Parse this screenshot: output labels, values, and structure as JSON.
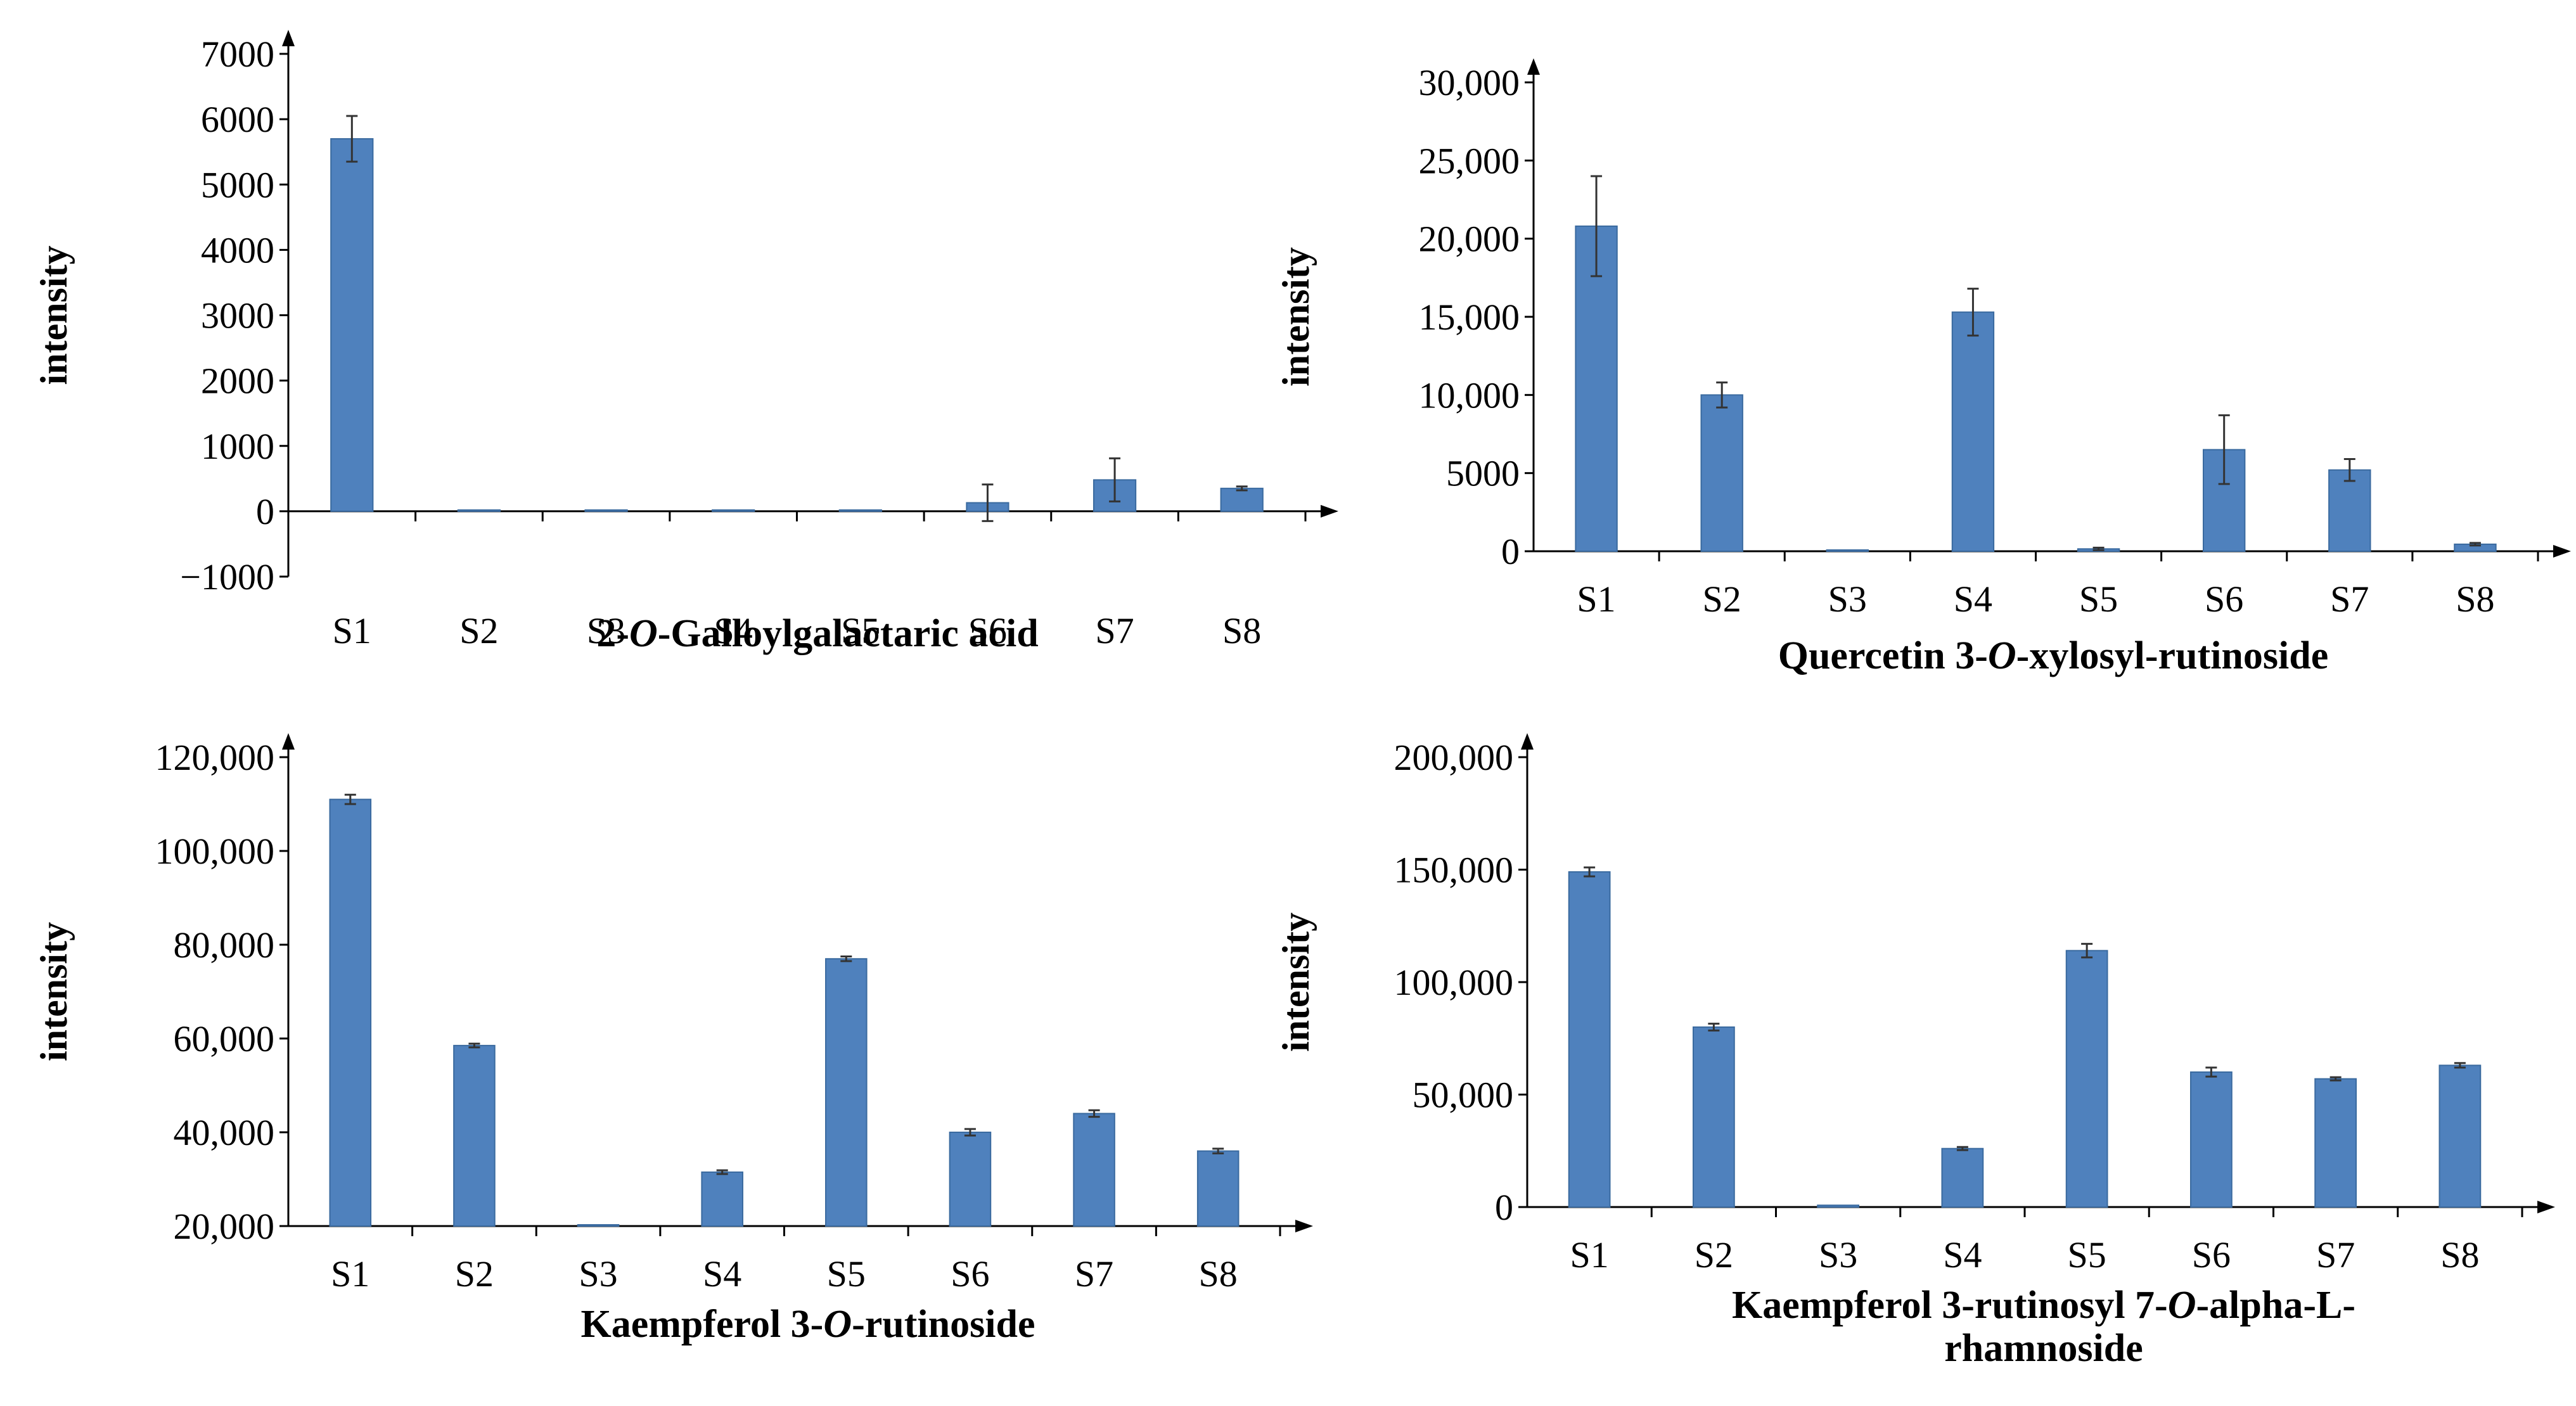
{
  "figure": {
    "background": "#ffffff",
    "bar_color": "#4f81bd",
    "bar_edge": "#3a6a9f",
    "axis_color": "#000000"
  },
  "chart_data": [
    {
      "type": "bar",
      "title_parts": [
        {
          "text": "2-",
          "italic": false
        },
        {
          "text": "O",
          "italic": true
        },
        {
          "text": "-Galloylgalactaric acid",
          "italic": false
        }
      ],
      "ylabel": "intensity",
      "categories": [
        "S1",
        "S2",
        "S3",
        "S4",
        "S5",
        "S6",
        "S7",
        "S8"
      ],
      "values": [
        5700,
        0,
        0,
        0,
        0,
        130,
        480,
        350
      ],
      "errors": [
        350,
        0,
        0,
        0,
        0,
        280,
        330,
        30
      ],
      "ylim": [
        -1000,
        7000
      ],
      "yticks": [
        -1000,
        0,
        1000,
        2000,
        3000,
        4000,
        5000,
        6000,
        7000
      ],
      "ytick_labels": [
        "−1000",
        "0",
        "1000",
        "2000",
        "3000",
        "4000",
        "5000",
        "6000",
        "7000"
      ],
      "grid": false
    },
    {
      "type": "bar",
      "title_parts": [
        {
          "text": "Quercetin 3-",
          "italic": false
        },
        {
          "text": "O",
          "italic": true
        },
        {
          "text": "-xylosyl-rutinoside",
          "italic": false
        }
      ],
      "ylabel": "intensity",
      "categories": [
        "S1",
        "S2",
        "S3",
        "S4",
        "S5",
        "S6",
        "S7",
        "S8"
      ],
      "values": [
        20800,
        10000,
        0,
        15300,
        150,
        6500,
        5200,
        450
      ],
      "errors": [
        3200,
        800,
        0,
        1500,
        80,
        2200,
        700,
        80
      ],
      "ylim": [
        0,
        30000
      ],
      "yticks": [
        0,
        5000,
        10000,
        15000,
        20000,
        25000,
        30000
      ],
      "ytick_labels": [
        "0",
        "5000",
        "10,000",
        "15,000",
        "20,000",
        "25,000",
        "30,000"
      ],
      "grid": false
    },
    {
      "type": "bar",
      "title_parts": [
        {
          "text": "Kaempferol 3-",
          "italic": false
        },
        {
          "text": "O",
          "italic": true
        },
        {
          "text": "-rutinoside",
          "italic": false
        }
      ],
      "ylabel": "intensity",
      "categories": [
        "S1",
        "S2",
        "S3",
        "S4",
        "S5",
        "S6",
        "S7",
        "S8"
      ],
      "values": [
        111000,
        58500,
        20200,
        31500,
        77000,
        40000,
        44000,
        36000
      ],
      "errors": [
        1000,
        400,
        0,
        400,
        500,
        700,
        700,
        500
      ],
      "ylim": [
        20000,
        120000
      ],
      "yticks": [
        20000,
        40000,
        60000,
        80000,
        100000,
        120000
      ],
      "ytick_labels": [
        "20,000",
        "40,000",
        "60,000",
        "80,000",
        "100,000",
        "120,000"
      ],
      "grid": false
    },
    {
      "type": "bar",
      "title_parts": [
        {
          "text": "Kaempferol 3-rutinosyl 7-",
          "italic": false
        },
        {
          "text": "O",
          "italic": true
        },
        {
          "text": "-alpha-L-",
          "italic": false
        }
      ],
      "title_line2": "rhamnoside",
      "ylabel": "intensity",
      "categories": [
        "S1",
        "S2",
        "S3",
        "S4",
        "S5",
        "S6",
        "S7",
        "S8"
      ],
      "values": [
        149000,
        80000,
        800,
        26000,
        114000,
        60000,
        57000,
        63000
      ],
      "errors": [
        2000,
        1500,
        0,
        700,
        3000,
        2000,
        700,
        1000
      ],
      "ylim": [
        0,
        200000
      ],
      "yticks": [
        0,
        50000,
        100000,
        150000,
        200000
      ],
      "ytick_labels": [
        "0",
        "50,000",
        "100,000",
        "150,000",
        "200,000"
      ],
      "grid": false
    }
  ]
}
